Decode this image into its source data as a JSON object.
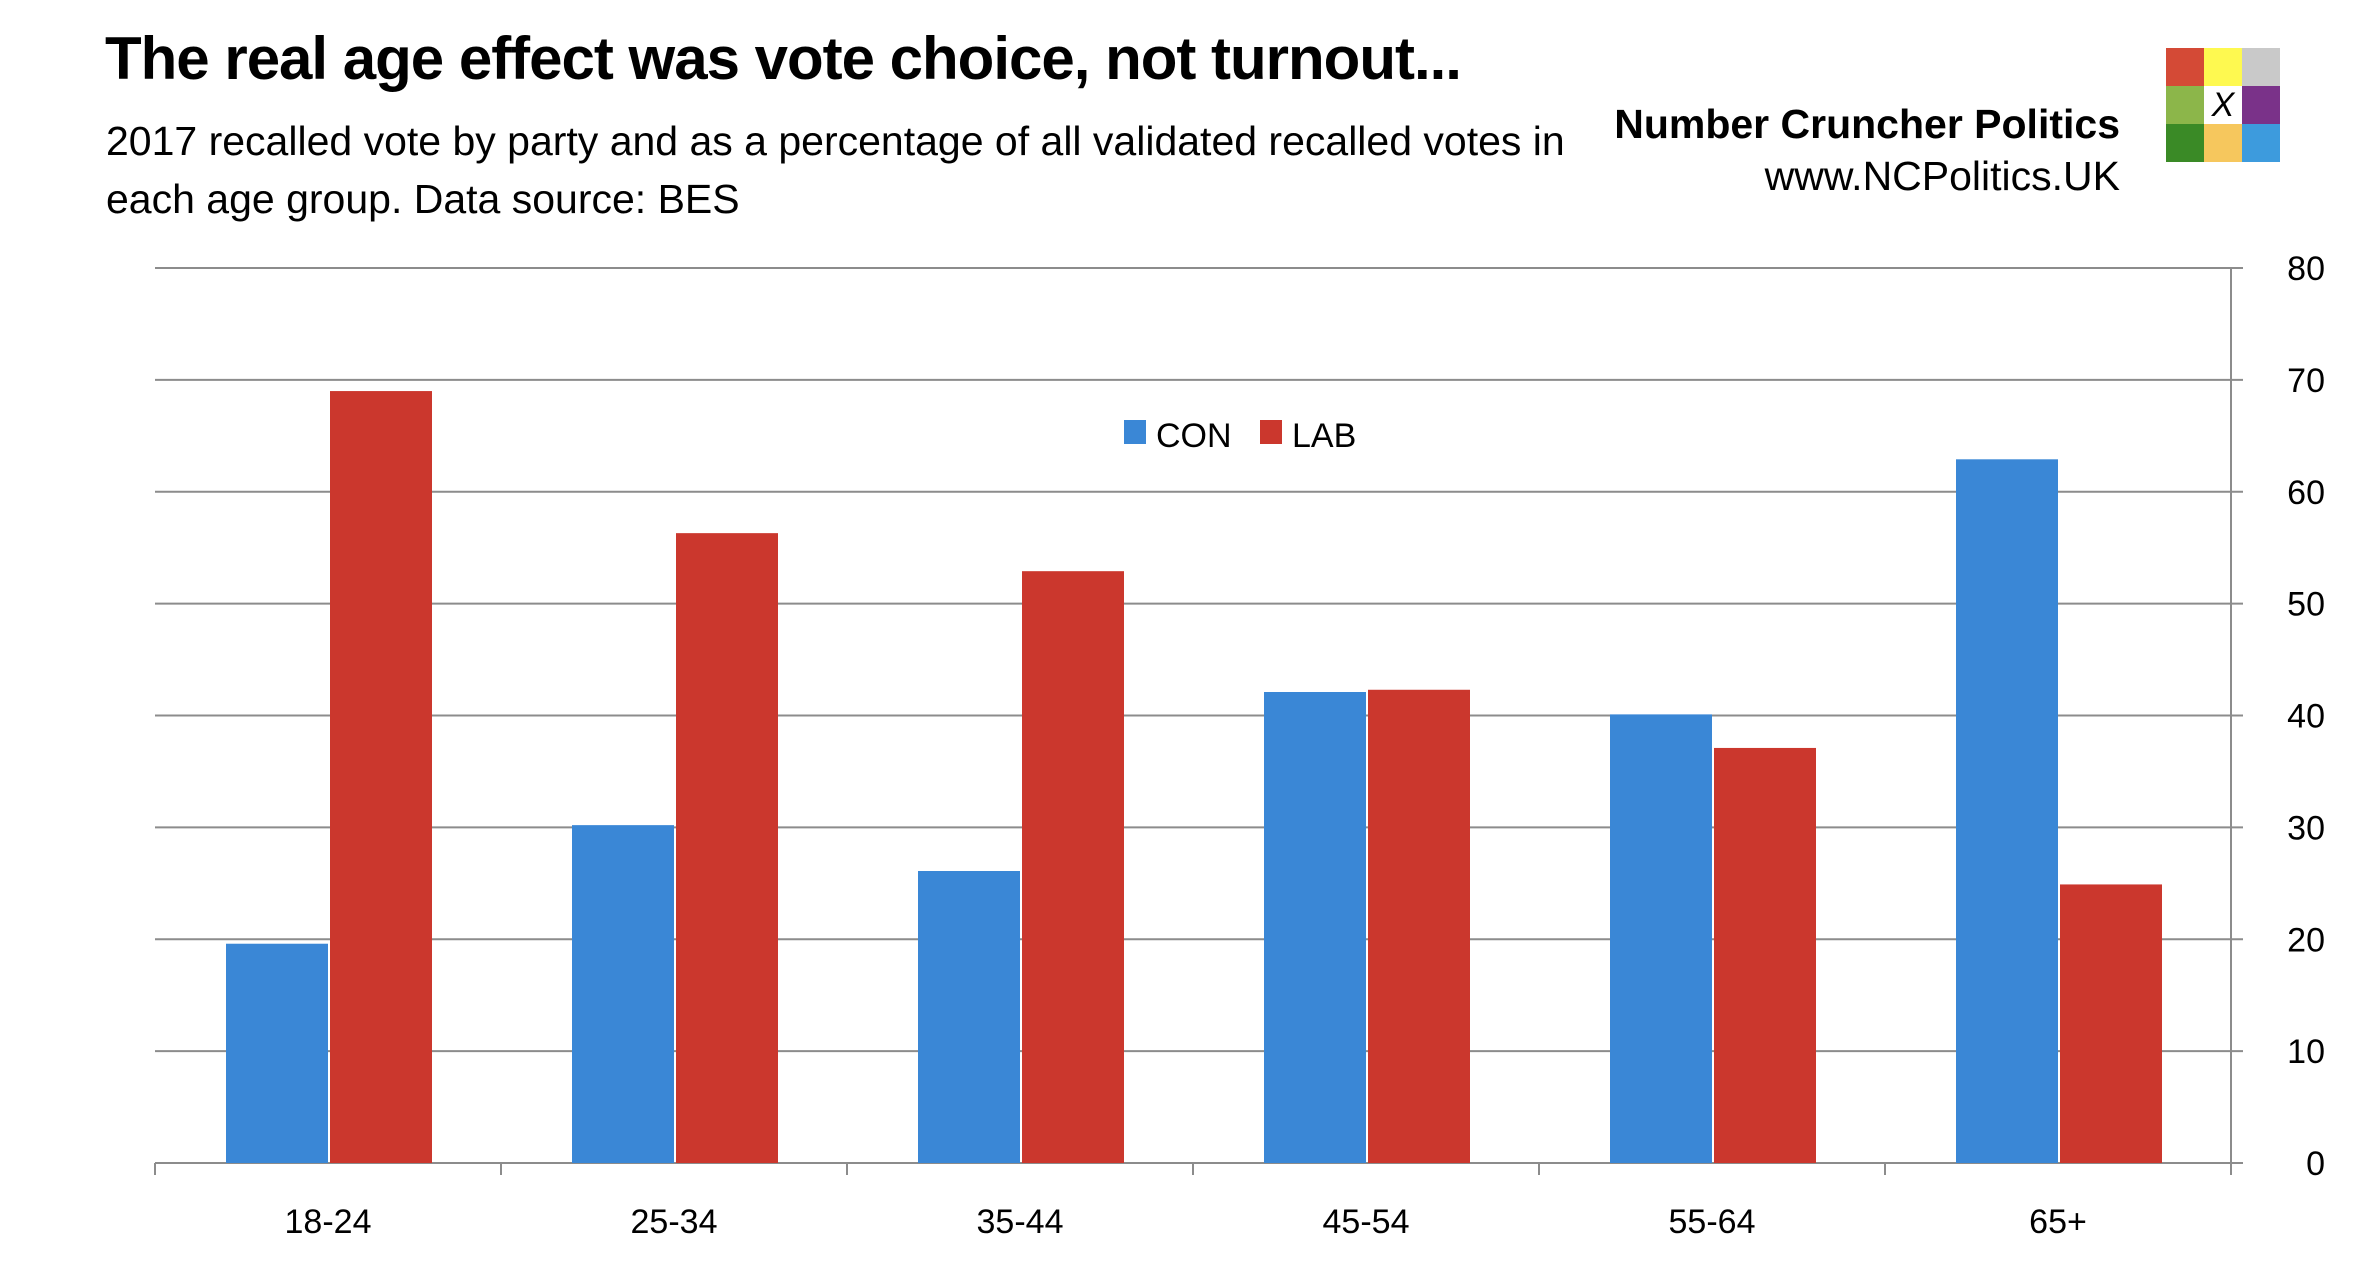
{
  "header": {
    "title": "The real age effect was vote choice, not turnout...",
    "subtitle": "2017 recalled vote by party and as a percentage of all validated recalled votes in each age group. Data source: BES",
    "brand": "Number Cruncher Politics",
    "url": "www.NCPolitics.UK",
    "logo_mark": "X",
    "logo_colors": [
      "#d44a36",
      "#fef950",
      "#c9c9c9",
      "#8cb64a",
      "#ffffff",
      "#7a3289",
      "#3a8a26",
      "#f6c75d",
      "#3d9bdd"
    ]
  },
  "chart_data": {
    "type": "bar",
    "categories": [
      "18-24",
      "25-34",
      "35-44",
      "45-54",
      "55-64",
      "65+"
    ],
    "series": [
      {
        "name": "CON",
        "color": "#3a87d6",
        "values": [
          19.6,
          30.2,
          26.1,
          42.1,
          40.1,
          62.9
        ]
      },
      {
        "name": "LAB",
        "color": "#cb372d",
        "values": [
          69.0,
          56.3,
          52.9,
          42.3,
          37.1,
          24.9
        ]
      }
    ],
    "ylim": [
      0,
      80
    ],
    "yticks": [
      0,
      10,
      20,
      30,
      40,
      50,
      60,
      70,
      80
    ],
    "y_axis_side": "right",
    "grid": true,
    "legend": "top-center",
    "xlabel": "",
    "ylabel": ""
  }
}
